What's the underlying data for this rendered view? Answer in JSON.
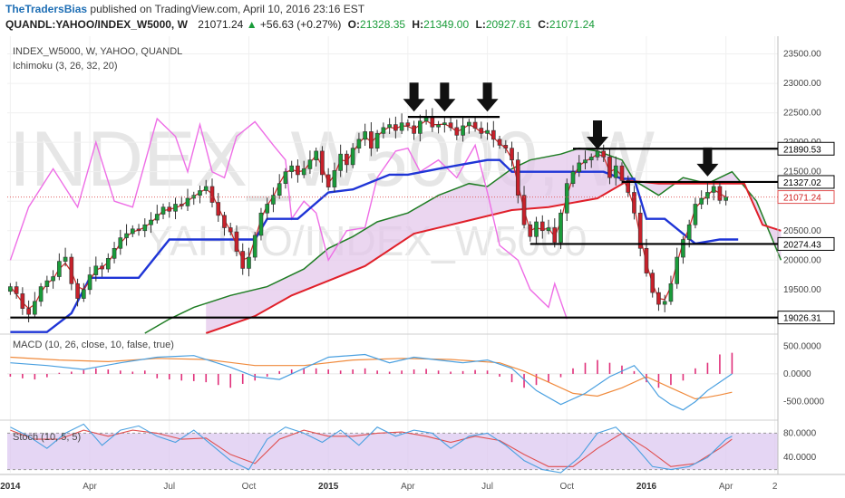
{
  "header": {
    "brand": "TheTradersBias",
    "published": "published on TradingView.com, April 10, 2016 23:16 EST",
    "symbol": "QUANDL:YAHOO/INDEX_W5000, W",
    "last": "21071.24",
    "change_arrow": "▲",
    "change": "+56.63 (+0.27%)",
    "o_label": "O:",
    "o_value": "21328.35",
    "h_label": "H:",
    "h_value": "21349.00",
    "l_label": "L:",
    "l_value": "20927.61",
    "c_label": "C:",
    "c_value": "21071.24"
  },
  "panes": {
    "main_title": "INDEX_W5000, W, YAHOO, QUANDL",
    "main_subtitle": "Ichimoku (3, 26, 32, 20)",
    "macd_title": "MACD (10, 26, close, 10, false, true)",
    "stoch_title": "Stoch (10, 5, 5)",
    "watermark1": "INDEX_W5000, W",
    "watermark2": "YAHOO/INDEX_W5000"
  },
  "colors": {
    "up_candle": "#1a9c3a",
    "down_candle": "#c8202a",
    "tenkan": "#d22525",
    "kijun": "#1f35d6",
    "chikou": "#ee6ee6",
    "span_a": "#1f7d24",
    "span_b": "#e0202a",
    "cloud": "#e3c4ea",
    "macd_line": "#4aa0e0",
    "signal_line": "#f08a3c",
    "hist": "#e0307a",
    "stoch_k": "#4aa0e0",
    "stoch_d": "#e05050",
    "stoch_band": "#dcc8f0"
  },
  "chart_data": [
    {
      "type": "candlestick",
      "name": "INDEX_W5000 weekly",
      "x_axis": {
        "ticks": [
          "2014",
          "Apr",
          "Jul",
          "Oct",
          "2015",
          "Apr",
          "Jul",
          "Oct",
          "2016",
          "Apr",
          "2"
        ],
        "tick_weeks": [
          0,
          13,
          26,
          39,
          52,
          65,
          78,
          91,
          104,
          117,
          125
        ],
        "bold_ticks": [
          "2014",
          "2015",
          "2016"
        ]
      },
      "y_axis": {
        "ticks": [
          19000,
          19500,
          20000,
          20500,
          21000,
          21500,
          22000,
          22500,
          23000,
          23500
        ],
        "tick_labels": [
          "19000.00",
          "19500.00",
          "20000.00",
          "20500.00",
          "21000.00",
          "21500.00",
          "22000.00",
          "22500.00",
          "23000.00",
          "23500.00"
        ],
        "ylim": [
          18760,
          23800
        ]
      },
      "price_labels": [
        {
          "value": 21890.53,
          "text": "21890.53",
          "style": "black"
        },
        {
          "value": 21327.02,
          "text": "21327.02",
          "style": "black"
        },
        {
          "value": 21071.24,
          "text": "21071.24",
          "style": "red"
        },
        {
          "value": 20274.43,
          "text": "20274.43",
          "style": "black"
        },
        {
          "value": 19026.31,
          "text": "19026.31",
          "style": "black"
        }
      ],
      "horizontal_lines": [
        {
          "value": 22430,
          "from_week": 65,
          "to_week": 80
        },
        {
          "value": 21890.53,
          "from_week": 92,
          "to_week": 126
        },
        {
          "value": 21327.02,
          "from_week": 100,
          "to_week": 126
        },
        {
          "value": 20274.43,
          "from_week": 85,
          "to_week": 126
        },
        {
          "value": 19026.31,
          "from_week": 0,
          "to_week": 126
        }
      ],
      "arrows_at_week": [
        66,
        71,
        78,
        96,
        114
      ],
      "arrow_tip_values": [
        22520,
        22520,
        22520,
        21880,
        21420
      ],
      "closes": [
        19550,
        19430,
        19180,
        19080,
        19300,
        19550,
        19650,
        19720,
        19980,
        20050,
        19600,
        19350,
        19500,
        19750,
        19900,
        19850,
        20030,
        20200,
        20380,
        20450,
        20530,
        20500,
        20600,
        20680,
        20780,
        20900,
        20830,
        20950,
        20920,
        21050,
        21100,
        21180,
        21250,
        20980,
        20760,
        20550,
        20480,
        20150,
        19860,
        20050,
        20420,
        20800,
        20950,
        21100,
        21300,
        21500,
        21600,
        21450,
        21550,
        21700,
        21850,
        21450,
        21240,
        21520,
        21800,
        21620,
        21900,
        22050,
        22180,
        21900,
        22150,
        22250,
        22300,
        22200,
        22330,
        22280,
        22150,
        22360,
        22420,
        22260,
        22300,
        22330,
        22250,
        22120,
        22280,
        22340,
        22240,
        22150,
        22200,
        22050,
        21950,
        21900,
        21700,
        21100,
        20600,
        20400,
        20650,
        20500,
        20550,
        20300,
        20800,
        21300,
        21500,
        21650,
        21700,
        21750,
        21850,
        21750,
        21400,
        21600,
        21350,
        21150,
        20800,
        20200,
        19780,
        19450,
        19250,
        19300,
        19600,
        20050,
        20350,
        20600,
        20950,
        21050,
        21150,
        21250,
        21014,
        21071
      ],
      "ichimoku": {
        "tenkan": [
          19550,
          19420,
          19280,
          19180,
          19250,
          19450,
          19600,
          19680,
          19850,
          19950,
          19800,
          19550,
          19500,
          19650,
          19830,
          19880,
          19960,
          20120,
          20290,
          20400,
          20480,
          20510,
          20560,
          20640,
          20730,
          20840,
          20860,
          20890,
          20930,
          21000,
          21080,
          21150,
          21210,
          21120,
          20900,
          20680,
          20500,
          20250,
          20000,
          20050,
          20350,
          20700,
          20930,
          21080,
          21300,
          21480,
          21540,
          21500,
          21520,
          21650,
          21780,
          21600,
          21300,
          21450,
          21700,
          21680,
          21830,
          21980,
          22100,
          22000,
          22100,
          22200,
          22260,
          22230,
          22280,
          22270,
          22220,
          22300,
          22370,
          22300,
          22300,
          22310,
          22260,
          22180,
          22230,
          22300,
          22250,
          22170,
          22180,
          22080,
          21980,
          21900,
          21720,
          21300,
          20850,
          20500,
          20550,
          20520,
          20540,
          20400,
          20650,
          21100,
          21400,
          21600,
          21680,
          21730,
          21800,
          21760,
          21500,
          21550,
          21420,
          21200,
          20900,
          20400,
          19950,
          19600,
          19350,
          19330,
          19550,
          19950,
          20300,
          20550,
          20880,
          21000,
          21100,
          21200,
          21130,
          21071
        ],
        "kijun_weeks": [
          0,
          6,
          10,
          13,
          21,
          26,
          33,
          40,
          42,
          47,
          52,
          56,
          62,
          65,
          70,
          78,
          80,
          82,
          87,
          97,
          100,
          102,
          104,
          107,
          112,
          116,
          119
        ],
        "kijun_values": [
          18780,
          18780,
          19100,
          19700,
          19700,
          20350,
          20350,
          20350,
          20700,
          20700,
          21150,
          21200,
          21450,
          21450,
          21550,
          21700,
          21700,
          21500,
          21500,
          21500,
          21380,
          21380,
          20700,
          20700,
          20280,
          20350,
          20350
        ],
        "span_a_weeks": [
          22,
          26,
          30,
          36,
          42,
          48,
          52,
          56,
          60,
          65,
          70,
          75,
          78,
          82,
          85,
          90,
          93,
          96,
          100,
          102,
          106,
          110,
          114,
          118,
          122,
          126
        ],
        "span_a_values": [
          18760,
          19000,
          19200,
          19400,
          19550,
          19850,
          20200,
          20400,
          20650,
          20800,
          21100,
          21300,
          21250,
          21550,
          21700,
          21800,
          21900,
          21850,
          21700,
          21350,
          21100,
          21400,
          21300,
          21500,
          21000,
          20000
        ],
        "span_b_weeks": [
          32,
          40,
          46,
          52,
          58,
          66,
          72,
          82,
          88,
          96,
          101,
          106,
          112,
          116,
          120,
          123,
          126
        ],
        "span_b_values": [
          18760,
          19050,
          19400,
          19650,
          19900,
          20450,
          20600,
          20850,
          20900,
          21050,
          21350,
          21300,
          21300,
          21300,
          21300,
          20600,
          20500
        ]
      },
      "chikou_weeks": [
        0,
        3,
        7,
        11,
        14,
        17,
        20,
        24,
        27,
        29,
        31,
        33,
        35,
        37,
        40,
        43,
        45,
        46,
        48,
        50,
        52,
        55,
        58,
        60,
        63,
        65,
        67,
        70,
        73,
        76,
        78,
        80,
        83,
        85,
        88,
        89,
        91
      ],
      "chikou_values": [
        20000,
        20900,
        21550,
        20900,
        22000,
        21000,
        20900,
        22400,
        22100,
        21500,
        22300,
        21500,
        21400,
        22100,
        22350,
        21950,
        21700,
        20700,
        21000,
        20800,
        20000,
        20500,
        20550,
        21400,
        21850,
        21900,
        21500,
        21700,
        21400,
        21950,
        21150,
        20250,
        20000,
        19500,
        19200,
        19600,
        19000
      ]
    },
    {
      "type": "line+bar",
      "name": "MACD (10, 26, close, 10, false, true)",
      "y_axis": {
        "ticks": [
          500,
          0,
          -500
        ],
        "tick_labels": [
          "500.0000",
          "0.0000",
          "-500.0000"
        ],
        "ylim": [
          -800,
          700
        ]
      },
      "macd_line_weeks": [
        0,
        6,
        12,
        18,
        24,
        30,
        36,
        40,
        44,
        48,
        52,
        58,
        62,
        66,
        70,
        74,
        78,
        82,
        86,
        90,
        94,
        98,
        102,
        104,
        106,
        108,
        110,
        112,
        114,
        116,
        118
      ],
      "macd_line_values": [
        200,
        150,
        80,
        200,
        300,
        330,
        120,
        -50,
        -100,
        100,
        300,
        350,
        200,
        300,
        250,
        200,
        250,
        100,
        -300,
        -550,
        -350,
        -50,
        150,
        -100,
        -400,
        -550,
        -650,
        -500,
        -300,
        -150,
        0
      ],
      "signal_line_weeks": [
        0,
        8,
        16,
        24,
        32,
        40,
        48,
        56,
        64,
        72,
        80,
        84,
        88,
        92,
        96,
        100,
        104,
        108,
        112,
        114,
        116,
        118
      ],
      "signal_line_values": [
        300,
        250,
        220,
        280,
        260,
        150,
        150,
        250,
        280,
        260,
        200,
        50,
        -150,
        -350,
        -400,
        -250,
        -50,
        -250,
        -450,
        -420,
        -380,
        -330
      ],
      "histogram_weeks": [
        0,
        2,
        4,
        6,
        8,
        10,
        12,
        14,
        16,
        18,
        20,
        22,
        24,
        26,
        28,
        30,
        32,
        34,
        36,
        38,
        40,
        42,
        44,
        46,
        48,
        50,
        52,
        54,
        56,
        58,
        60,
        62,
        64,
        66,
        68,
        70,
        72,
        74,
        76,
        78,
        80,
        82,
        84,
        86,
        88,
        90,
        92,
        94,
        96,
        98,
        100,
        102,
        104,
        106,
        108,
        110,
        112,
        114,
        116,
        118
      ],
      "histogram_values": [
        -50,
        -80,
        -100,
        -60,
        20,
        40,
        70,
        100,
        80,
        60,
        40,
        60,
        -80,
        -100,
        -120,
        -130,
        -150,
        -200,
        -250,
        -180,
        -120,
        -50,
        50,
        80,
        100,
        100,
        80,
        60,
        80,
        100,
        60,
        40,
        60,
        80,
        90,
        60,
        40,
        50,
        70,
        60,
        -50,
        -150,
        -250,
        -200,
        -150,
        -60,
        100,
        200,
        250,
        200,
        150,
        50,
        -150,
        -250,
        -200,
        -120,
        100,
        200,
        350,
        380
      ]
    },
    {
      "type": "line",
      "name": "Stoch (10, 5, 5)",
      "y_axis": {
        "ticks": [
          80,
          40
        ],
        "tick_labels": [
          "80.0000",
          "40.0000"
        ],
        "ylim": [
          15,
          100
        ]
      },
      "band": [
        20,
        80
      ],
      "k_weeks": [
        0,
        3,
        6,
        9,
        12,
        15,
        18,
        21,
        24,
        27,
        30,
        33,
        36,
        39,
        42,
        45,
        48,
        51,
        54,
        57,
        60,
        63,
        66,
        69,
        72,
        75,
        78,
        81,
        84,
        87,
        90,
        93,
        96,
        99,
        102,
        105,
        108,
        111,
        114,
        117,
        118
      ],
      "k_values": [
        90,
        75,
        55,
        80,
        95,
        60,
        85,
        92,
        75,
        65,
        85,
        60,
        35,
        20,
        70,
        90,
        80,
        65,
        85,
        60,
        90,
        75,
        85,
        80,
        55,
        75,
        80,
        60,
        35,
        20,
        15,
        40,
        80,
        90,
        60,
        25,
        20,
        25,
        40,
        70,
        75
      ],
      "d_weeks": [
        0,
        4,
        8,
        12,
        16,
        20,
        24,
        28,
        32,
        36,
        40,
        44,
        48,
        52,
        56,
        60,
        64,
        68,
        72,
        76,
        80,
        84,
        88,
        92,
        96,
        100,
        104,
        108,
        112,
        116,
        118
      ],
      "d_values": [
        85,
        70,
        70,
        85,
        75,
        85,
        80,
        70,
        72,
        45,
        30,
        70,
        85,
        75,
        75,
        80,
        82,
        75,
        65,
        75,
        68,
        45,
        25,
        25,
        55,
        80,
        55,
        25,
        30,
        55,
        70
      ]
    }
  ]
}
